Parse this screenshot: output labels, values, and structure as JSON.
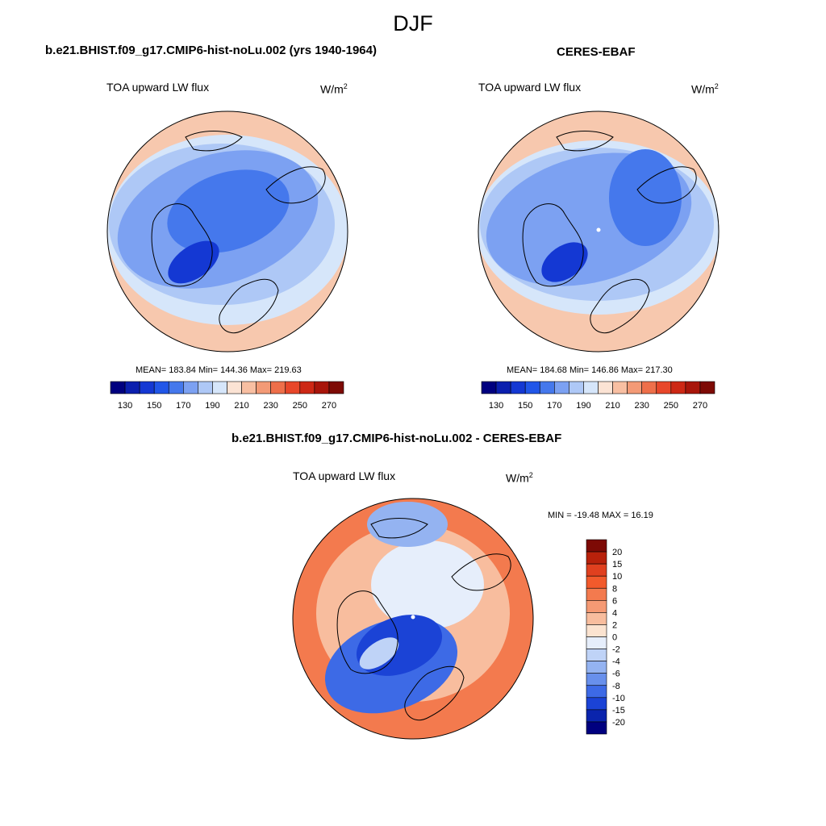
{
  "figure": {
    "season": "DJF"
  },
  "panels": [
    {
      "title": "b.e21.BHIST.f09_g17.CMIP6-hist-noLu.002 (yrs 1940-1964)",
      "variable": "TOA upward LW flux",
      "units_base": "W/m",
      "units_sup": "2",
      "stats": "MEAN= 183.84  Min= 144.36  Max= 219.63"
    },
    {
      "title": "CERES-EBAF",
      "variable": "TOA upward LW flux",
      "units_base": "W/m",
      "units_sup": "2",
      "stats": "MEAN= 184.68  Min= 146.86  Max= 217.30"
    },
    {
      "title": "b.e21.BHIST.f09_g17.CMIP6-hist-noLu.002 - CERES-EBAF",
      "variable": "TOA upward LW flux",
      "units_base": "W/m",
      "units_sup": "2",
      "stats": "MIN = -19.48 MAX =  16.19"
    }
  ],
  "colorbar_abs": {
    "tick_labels": [
      "130",
      "150",
      "170",
      "190",
      "210",
      "230",
      "250",
      "270"
    ],
    "colors": [
      "#00007f",
      "#0b1fae",
      "#1438d3",
      "#2156e8",
      "#4578ec",
      "#7ca1f2",
      "#aec8f6",
      "#d6e6fa",
      "#fbe3d4",
      "#f8bfa2",
      "#f39a76",
      "#ee6f4a",
      "#e8472a",
      "#cd2815",
      "#a8150a",
      "#7d0a05"
    ]
  },
  "colorbar_diff": {
    "tick_labels": [
      "20",
      "15",
      "10",
      "8",
      "6",
      "4",
      "2",
      "0",
      "-2",
      "-4",
      "-6",
      "-8",
      "-10",
      "-15",
      "-20"
    ],
    "colors": [
      "#7d0a05",
      "#b8210b",
      "#e0401f",
      "#f25a2c",
      "#f37a4e",
      "#f59a74",
      "#f8bd9e",
      "#fbe3d0",
      "#e6eefb",
      "#bfd3f7",
      "#94b3f1",
      "#6890ec",
      "#3d6ae6",
      "#1b43d6",
      "#0a24ad",
      "#00007f"
    ]
  },
  "map_fill_colors": {
    "abs_ocean_warm": "#f7c8ae",
    "abs_mid": "#aec8f6",
    "abs_low": "#7ca1f2",
    "abs_lower": "#4578ec",
    "abs_lowest": "#1438d3",
    "diff_pos": "#f37a4e",
    "diff_pos_light": "#f8bd9e",
    "diff_neg": "#3d6ae6",
    "diff_neg_dark": "#1b43d6"
  }
}
